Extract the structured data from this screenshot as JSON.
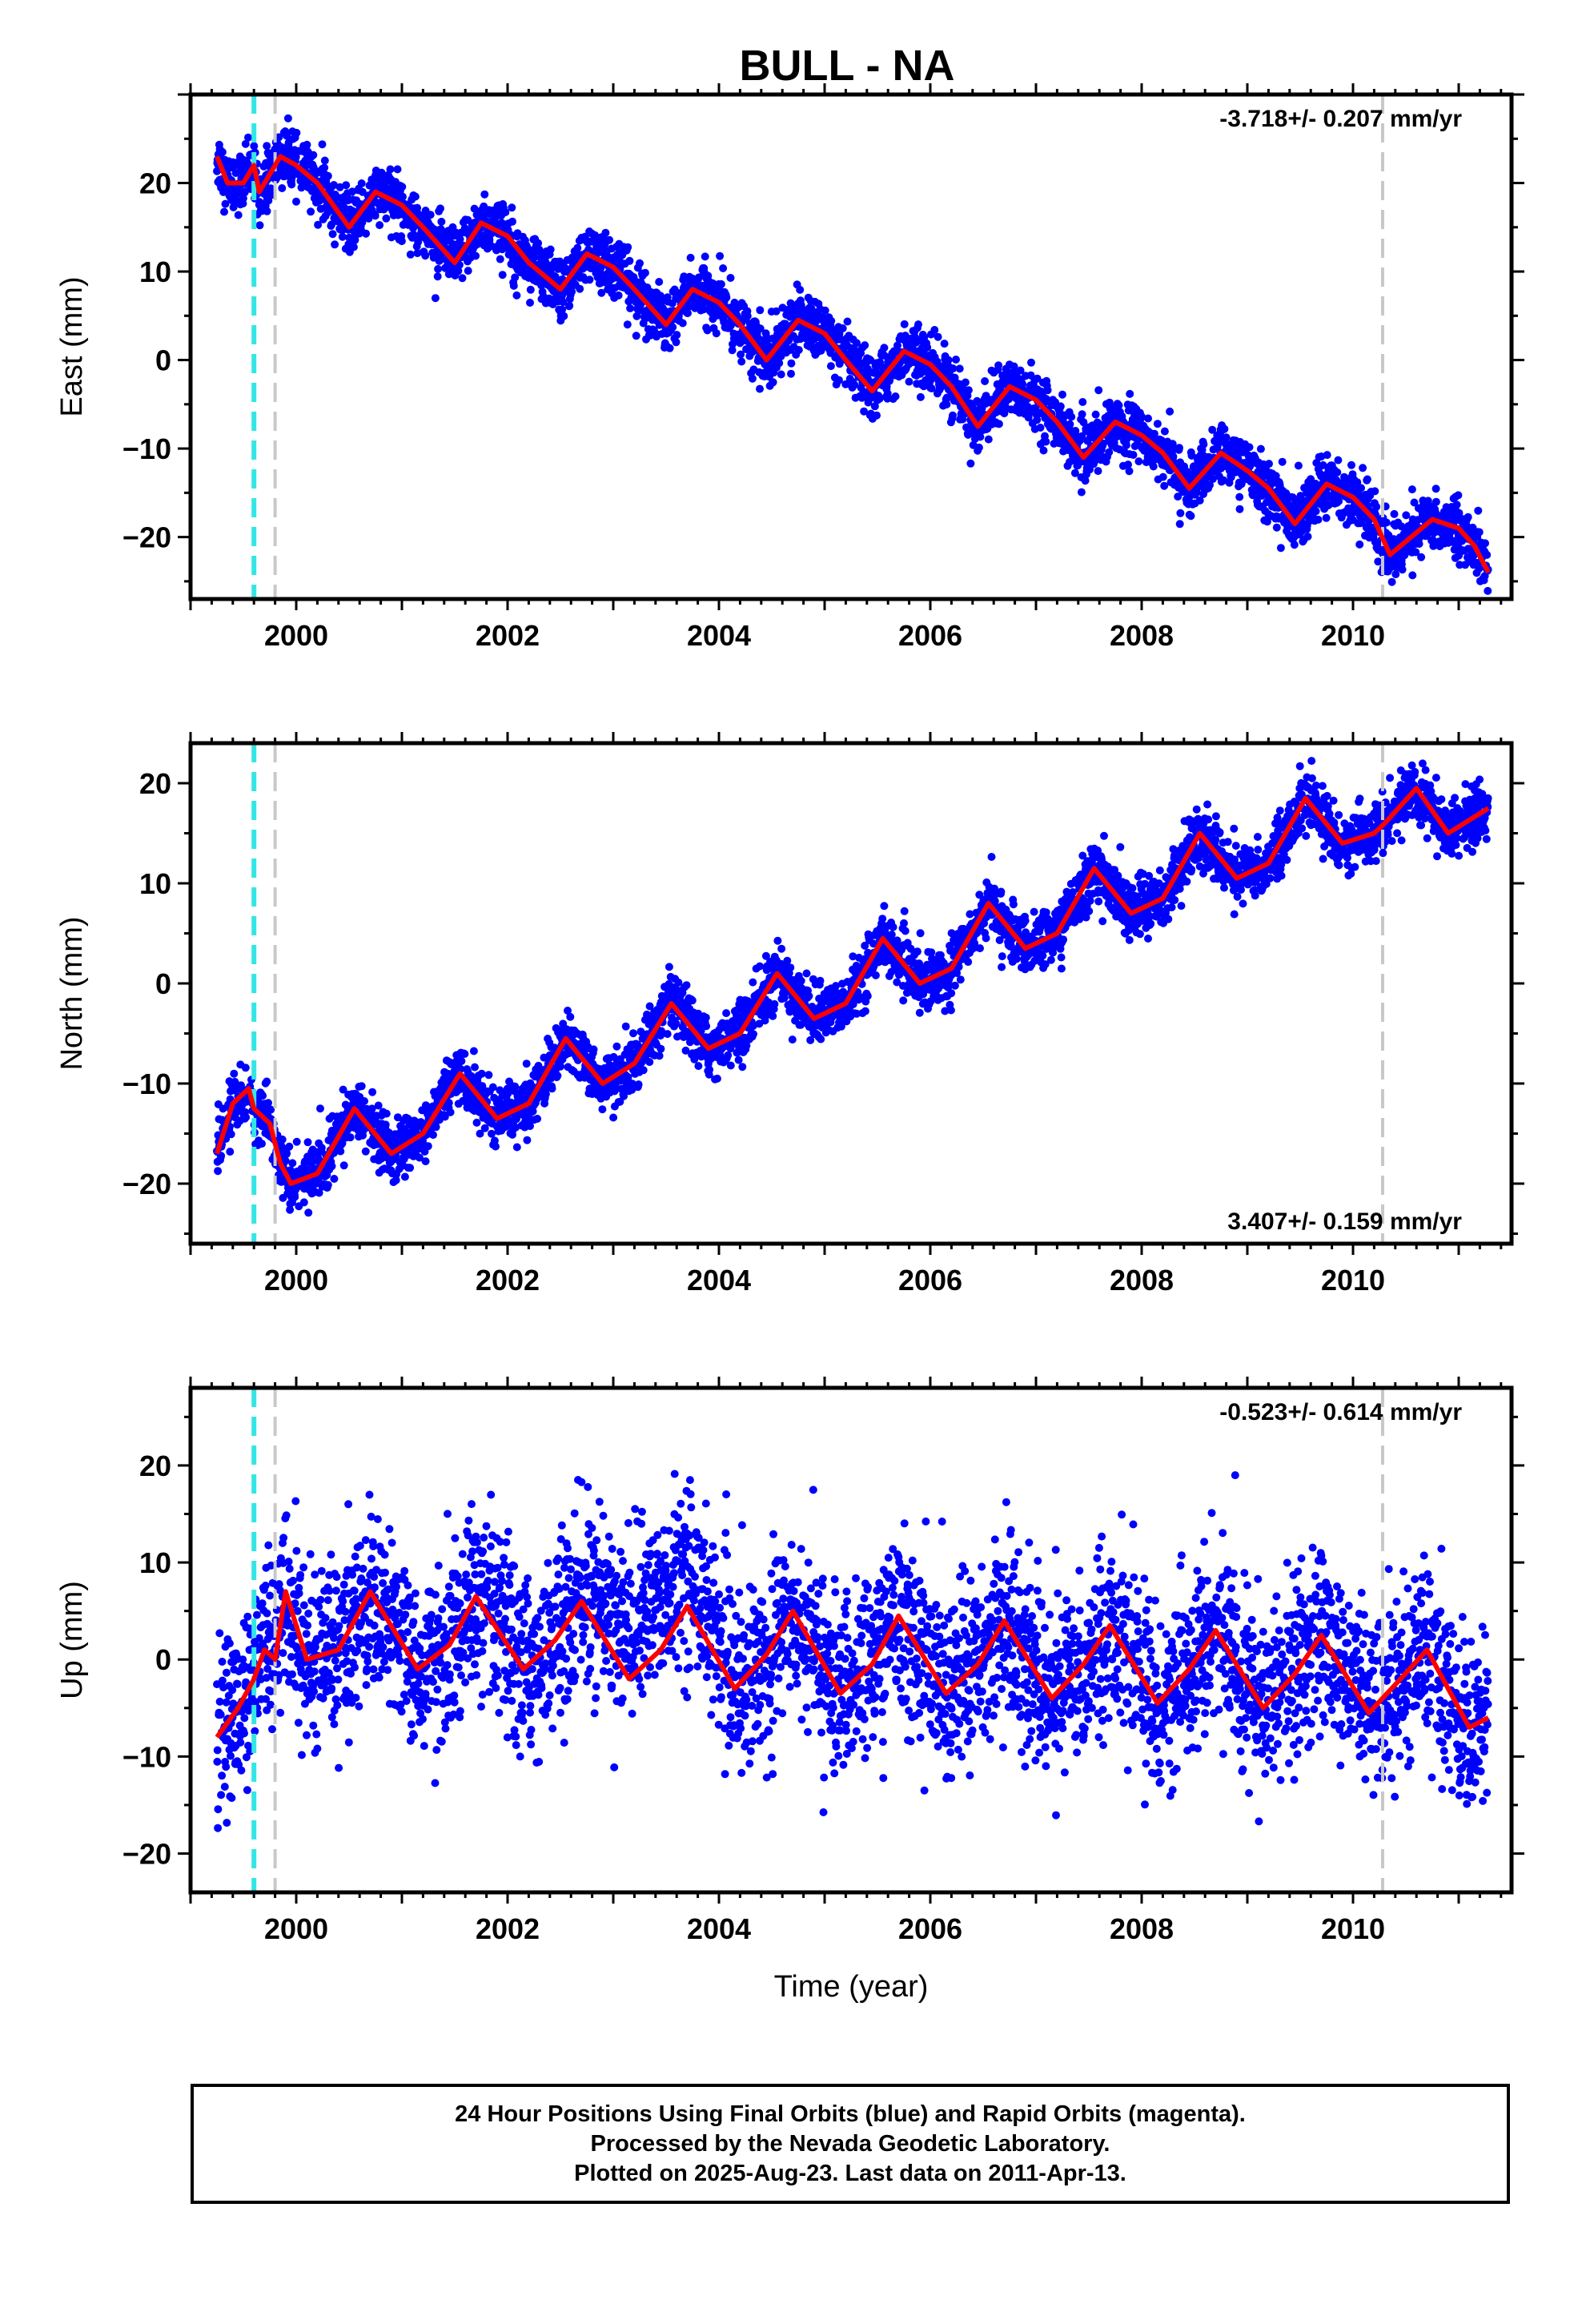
{
  "title": "BULL - NA",
  "footer": {
    "line1": "24 Hour Positions Using Final Orbits (blue) and Rapid Orbits (magenta).",
    "line2": "Processed by the Nevada Geodetic Laboratory.",
    "line3": "Plotted on 2025-Aug-23. Last data on 2011-Apr-13."
  },
  "colors": {
    "data_points": "#0000ff",
    "model_fit": "#ff0000",
    "equipment_change": "#33e6e6",
    "other_event": "#c8c8c8"
  },
  "chart_data": [
    {
      "type": "scatter",
      "component": "east",
      "title": "BULL - NA",
      "xlabel": "",
      "ylabel": "East (mm)",
      "xlim": [
        1999.0,
        2011.5
      ],
      "ylim": [
        -27,
        30
      ],
      "x_ticks": [
        2000,
        2002,
        2004,
        2006,
        2008,
        2010
      ],
      "y_ticks": [
        -20,
        -10,
        0,
        10,
        20
      ],
      "rate": "-3.718+/- 0.207 mm/yr",
      "rate_position": "top-right",
      "data_start": 1999.25,
      "data_end": 2011.28,
      "vertical_lines": [
        {
          "x": 1999.6,
          "style": "dashed",
          "color": "cyan"
        },
        {
          "x": 1999.8,
          "style": "dashed",
          "color": "gray"
        },
        {
          "x": 2010.28,
          "style": "dashed",
          "color": "gray"
        }
      ],
      "model_series": {
        "name": "",
        "x": [
          1999.25,
          1999.35,
          1999.5,
          1999.6,
          1999.65,
          1999.75,
          1999.85,
          2000.0,
          2000.2,
          2000.5,
          2000.75,
          2001.0,
          2001.2,
          2001.5,
          2001.75,
          2002.0,
          2002.2,
          2002.5,
          2002.75,
          2003.0,
          2003.2,
          2003.5,
          2003.75,
          2004.0,
          2004.2,
          2004.45,
          2004.75,
          2005.0,
          2005.2,
          2005.45,
          2005.75,
          2006.0,
          2006.2,
          2006.45,
          2006.75,
          2007.0,
          2007.2,
          2007.45,
          2007.75,
          2008.0,
          2008.2,
          2008.45,
          2008.75,
          2009.0,
          2009.2,
          2009.45,
          2009.75,
          2010.0,
          2010.2,
          2010.35,
          2010.5,
          2010.75,
          2011.0,
          2011.15,
          2011.28
        ],
        "y": [
          23,
          20,
          20,
          22,
          19,
          21,
          23,
          22,
          20,
          15,
          19,
          17.5,
          15,
          11,
          15.5,
          14,
          11,
          8,
          12,
          10.5,
          8,
          4,
          8,
          6.5,
          4,
          0,
          4.5,
          3,
          0,
          -3.5,
          1,
          -0.5,
          -3,
          -7.5,
          -3,
          -4.5,
          -7,
          -11,
          -7,
          -8.5,
          -10.5,
          -14.5,
          -10.5,
          -12.5,
          -14.5,
          -18.5,
          -14,
          -15.5,
          -18,
          -22,
          -20.5,
          -18,
          -19,
          -21,
          -24
        ]
      },
      "scatter_noise": 1.6
    },
    {
      "type": "scatter",
      "component": "north",
      "xlabel": "",
      "ylabel": "North (mm)",
      "xlim": [
        1999.0,
        2011.5
      ],
      "ylim": [
        -26,
        24
      ],
      "x_ticks": [
        2000,
        2002,
        2004,
        2006,
        2008,
        2010
      ],
      "y_ticks": [
        -20,
        -10,
        0,
        10,
        20
      ],
      "rate": "3.407+/- 0.159 mm/yr",
      "rate_position": "bottom-right",
      "data_start": 1999.25,
      "data_end": 2011.28,
      "vertical_lines": [
        {
          "x": 1999.6,
          "style": "dashed",
          "color": "cyan"
        },
        {
          "x": 1999.8,
          "style": "dashed",
          "color": "gray"
        },
        {
          "x": 2010.28,
          "style": "dashed",
          "color": "gray"
        }
      ],
      "model_series": {
        "name": "",
        "x": [
          1999.25,
          1999.4,
          1999.55,
          1999.6,
          1999.75,
          1999.85,
          1999.95,
          2000.2,
          2000.55,
          2000.9,
          2001.2,
          2001.55,
          2001.9,
          2002.2,
          2002.55,
          2002.9,
          2003.2,
          2003.55,
          2003.9,
          2004.2,
          2004.55,
          2004.9,
          2005.2,
          2005.55,
          2005.9,
          2006.2,
          2006.55,
          2006.9,
          2007.2,
          2007.55,
          2007.9,
          2008.2,
          2008.55,
          2008.9,
          2009.2,
          2009.55,
          2009.9,
          2010.2,
          2010.3,
          2010.6,
          2010.9,
          2011.28
        ],
        "y": [
          -17,
          -12,
          -10.5,
          -12.5,
          -14,
          -18,
          -20,
          -19,
          -12.5,
          -17,
          -15,
          -9,
          -13.5,
          -12,
          -5.5,
          -10,
          -8,
          -2,
          -6.5,
          -5,
          1,
          -3.5,
          -2,
          4.5,
          0,
          1.5,
          8,
          3.5,
          5,
          11.5,
          7,
          8.5,
          15,
          10.5,
          12,
          18.5,
          14,
          15,
          16,
          19.5,
          15,
          17.5
        ]
      },
      "scatter_noise": 1.4
    },
    {
      "type": "scatter",
      "component": "up",
      "xlabel": "Time (year)",
      "ylabel": "Up (mm)",
      "xlim": [
        1999.0,
        2011.5
      ],
      "ylim": [
        -24,
        28
      ],
      "x_ticks": [
        2000,
        2002,
        2004,
        2006,
        2008,
        2010
      ],
      "y_ticks": [
        -20,
        -10,
        0,
        10,
        20
      ],
      "rate": "-0.523+/- 0.614 mm/yr",
      "rate_position": "top-right",
      "data_start": 1999.25,
      "data_end": 2011.28,
      "vertical_lines": [
        {
          "x": 1999.6,
          "style": "dashed",
          "color": "cyan"
        },
        {
          "x": 1999.8,
          "style": "dashed",
          "color": "gray"
        },
        {
          "x": 2010.28,
          "style": "dashed",
          "color": "gray"
        }
      ],
      "model_series": {
        "name": "",
        "x": [
          1999.25,
          1999.45,
          1999.6,
          1999.7,
          1999.8,
          1999.9,
          2000.1,
          2000.4,
          2000.7,
          2001.15,
          2001.45,
          2001.7,
          2002.15,
          2002.45,
          2002.7,
          2003.15,
          2003.45,
          2003.7,
          2004.15,
          2004.45,
          2004.7,
          2005.15,
          2005.45,
          2005.7,
          2006.15,
          2006.45,
          2006.7,
          2007.15,
          2007.45,
          2007.7,
          2008.15,
          2008.45,
          2008.7,
          2009.15,
          2009.45,
          2009.7,
          2010.15,
          2010.45,
          2010.7,
          2011.1,
          2011.28
        ],
        "y": [
          -8,
          -5,
          -2,
          1,
          0,
          7,
          0,
          1,
          7,
          -1,
          1.5,
          6.5,
          -1,
          2,
          6,
          -2,
          1,
          5.5,
          -3,
          0.5,
          5,
          -3.5,
          -0.5,
          4.5,
          -3.5,
          -0.5,
          4,
          -4,
          -0.5,
          3.5,
          -4.5,
          -1,
          3,
          -5,
          -1.5,
          2.5,
          -5.5,
          -2,
          1,
          -7,
          -6
        ]
      },
      "scatter_noise": 4.5
    }
  ]
}
